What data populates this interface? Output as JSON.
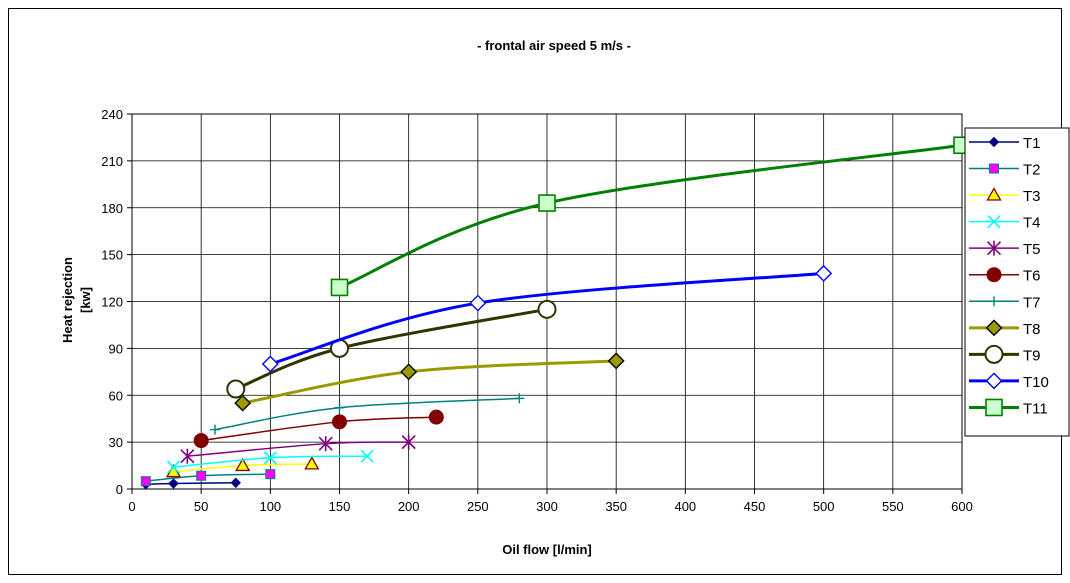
{
  "chart_data": {
    "type": "line",
    "title": "- frontal air speed 5 m/s -",
    "xlabel": "Oil flow [l/min]",
    "ylabel_lines": [
      "Heat rejection",
      "[kw]"
    ],
    "xlim": [
      0,
      600
    ],
    "ylim": [
      0,
      240
    ],
    "x_ticks": [
      0,
      50,
      100,
      150,
      200,
      250,
      300,
      350,
      400,
      450,
      500,
      550,
      600
    ],
    "y_ticks": [
      0,
      30,
      60,
      90,
      120,
      150,
      180,
      210,
      240
    ],
    "grid": true,
    "legend_position": "right",
    "series": [
      {
        "name": "T1",
        "color": "#000080",
        "marker": "diamond-filled",
        "line_width": 1.5,
        "x": [
          10,
          30,
          75
        ],
        "y": [
          3,
          3.5,
          4
        ]
      },
      {
        "name": "T2",
        "color": "#008080",
        "marker_fill": "#ff00ff",
        "marker": "square-filled",
        "line_width": 1.5,
        "x": [
          10,
          50,
          100
        ],
        "y": [
          5,
          8.5,
          9.5
        ]
      },
      {
        "name": "T3",
        "color": "#ffff00",
        "marker_stroke": "#800000",
        "marker": "triangle",
        "line_width": 1.5,
        "x": [
          30,
          80,
          130
        ],
        "y": [
          11,
          15,
          16
        ]
      },
      {
        "name": "T4",
        "color": "#00ffff",
        "marker": "x",
        "line_width": 1.5,
        "x": [
          30,
          100,
          170
        ],
        "y": [
          14,
          20,
          21
        ]
      },
      {
        "name": "T5",
        "color": "#800080",
        "marker": "star",
        "line_width": 1.5,
        "x": [
          40,
          140,
          200
        ],
        "y": [
          21,
          29,
          30
        ]
      },
      {
        "name": "T6",
        "color": "#800000",
        "marker": "circle-filled",
        "line_width": 1.5,
        "x": [
          50,
          150,
          220
        ],
        "y": [
          31,
          43,
          46
        ]
      },
      {
        "name": "T7",
        "color": "#008080",
        "marker": "plus",
        "line_width": 1.5,
        "x": [
          60,
          150,
          280
        ],
        "y": [
          38,
          52,
          58
        ]
      },
      {
        "name": "T8",
        "color": "#999900",
        "marker_stroke": "#000000",
        "marker_fill": "#999900",
        "marker": "diamond",
        "line_width": 3,
        "x": [
          80,
          200,
          350
        ],
        "y": [
          55,
          75,
          82
        ]
      },
      {
        "name": "T9",
        "color": "#333300",
        "marker_stroke": "#333300",
        "marker_fill": "#ffffff",
        "marker": "circle",
        "line_width": 3,
        "x": [
          75,
          150,
          300
        ],
        "y": [
          64,
          90,
          115
        ]
      },
      {
        "name": "T10",
        "color": "#0000ff",
        "marker_stroke": "#0000ff",
        "marker_fill": "#ffffff",
        "marker": "diamond",
        "line_width": 3,
        "x": [
          100,
          250,
          500
        ],
        "y": [
          80,
          119,
          138
        ]
      },
      {
        "name": "T11",
        "color": "#008000",
        "marker_stroke": "#008000",
        "marker_fill": "#ccffcc",
        "marker": "square",
        "line_width": 3,
        "x": [
          150,
          300,
          600
        ],
        "y": [
          129,
          183,
          220
        ]
      }
    ]
  }
}
